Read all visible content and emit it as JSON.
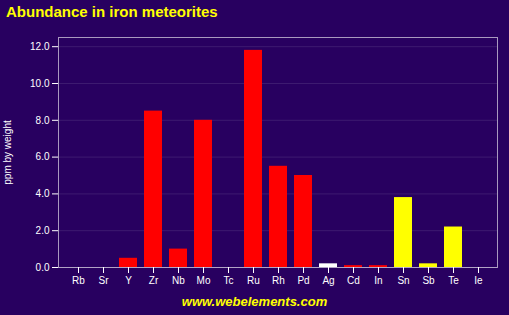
{
  "chart_data": {
    "type": "bar",
    "title": "Abundance in iron meteorites",
    "ylabel": "ppm by weight",
    "annotations": [
      "www.webelements.com"
    ],
    "categories": [
      "Rb",
      "Sr",
      "Y",
      "Zr",
      "Nb",
      "Mo",
      "Tc",
      "Ru",
      "Rh",
      "Pd",
      "Ag",
      "Cd",
      "In",
      "Sn",
      "Sb",
      "Te",
      "Ie"
    ],
    "values": [
      0.0,
      0.0,
      0.5,
      8.5,
      1.0,
      8.0,
      0.0,
      11.8,
      5.5,
      5.0,
      0.2,
      0.1,
      0.1,
      3.8,
      0.2,
      2.2,
      0.0
    ],
    "colors": [
      "white",
      "white",
      "red",
      "red",
      "red",
      "red",
      "red",
      "red",
      "red",
      "red",
      "white",
      "red",
      "red",
      "yellow",
      "yellow",
      "yellow",
      "violet"
    ],
    "ylim": [
      0,
      12.5
    ],
    "yticks": [
      {
        "value": 0,
        "label": "0.0"
      },
      {
        "value": 2,
        "label": "2.0"
      },
      {
        "value": 4,
        "label": "4.0"
      },
      {
        "value": 6,
        "label": "6.0"
      },
      {
        "value": 8,
        "label": "8.0"
      },
      {
        "value": 10,
        "label": "10.0"
      },
      {
        "value": 12,
        "label": "12.0"
      }
    ],
    "grid": true
  }
}
